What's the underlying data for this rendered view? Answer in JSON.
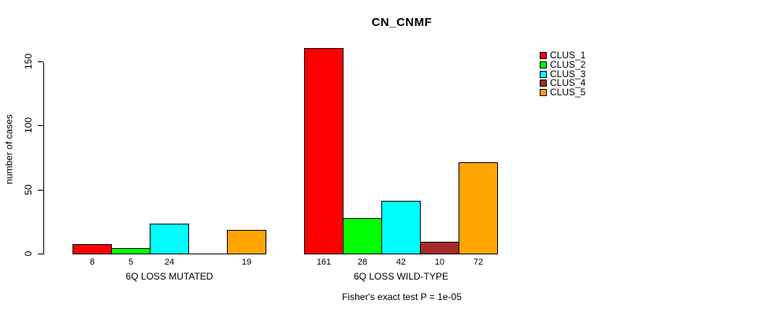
{
  "title": "CN_CNMF",
  "ylabel": "number of cases",
  "footer": "Fisher's exact test P = 1e-05",
  "legend": {
    "items": [
      {
        "label": "CLUS_1",
        "color": "#FF0000"
      },
      {
        "label": "CLUS_2",
        "color": "#00FF00"
      },
      {
        "label": "CLUS_3",
        "color": "#00FFFF"
      },
      {
        "label": "CLUS_4",
        "color": "#A52A2A"
      },
      {
        "label": "CLUS_5",
        "color": "#FFA500"
      }
    ]
  },
  "chart_data": {
    "type": "bar",
    "title": "CN_CNMF",
    "xlabel": "",
    "ylabel": "number of cases",
    "annotation": "Fisher's exact test P = 1e-05",
    "yticks": [
      0,
      50,
      100,
      150
    ],
    "ylim": [
      0,
      165
    ],
    "grid": false,
    "legend_position": "right",
    "series_names": [
      "CLUS_1",
      "CLUS_2",
      "CLUS_3",
      "CLUS_4",
      "CLUS_5"
    ],
    "colors": [
      "#FF0000",
      "#00FF00",
      "#00FFFF",
      "#A52A2A",
      "#FFA500"
    ],
    "groups": [
      {
        "label": "6Q LOSS MUTATED",
        "values": [
          8,
          5,
          24,
          0,
          19
        ],
        "value_labels": [
          "8",
          "5",
          "24",
          "",
          "19"
        ]
      },
      {
        "label": "6Q LOSS WILD-TYPE",
        "values": [
          161,
          28,
          42,
          10,
          72
        ],
        "value_labels": [
          "161",
          "28",
          "42",
          "10",
          "72"
        ]
      }
    ]
  }
}
